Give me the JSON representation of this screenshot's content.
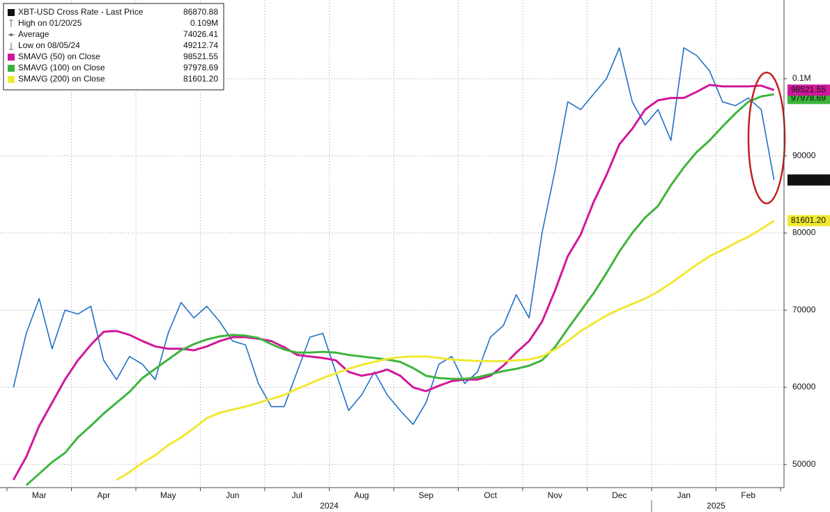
{
  "chart_data": {
    "type": "line",
    "categories": [
      null,
      null,
      "Mar",
      null,
      null,
      null,
      null,
      "Apr",
      null,
      null,
      null,
      null,
      "May",
      null,
      null,
      null,
      null,
      "Jun",
      null,
      null,
      null,
      null,
      "Jul",
      null,
      null,
      null,
      null,
      "Aug",
      null,
      null,
      null,
      null,
      "Sep",
      null,
      null,
      null,
      null,
      "Oct",
      null,
      null,
      null,
      null,
      "Nov",
      null,
      null,
      null,
      null,
      "Dec",
      null,
      null,
      null,
      null,
      "Jan",
      null,
      null,
      null,
      null,
      "Feb",
      null,
      null
    ],
    "x_group_labels": [
      "2024",
      "2025"
    ],
    "series": [
      {
        "name": "XBT-USD Cross Rate - Last Price",
        "color": "#1f6fc5",
        "last_label": "86870.88",
        "values": [
          60000,
          67000,
          71500,
          65000,
          70000,
          69500,
          70500,
          63500,
          61000,
          64000,
          63000,
          61000,
          67000,
          71000,
          69000,
          70500,
          68500,
          66000,
          65500,
          60500,
          57500,
          57500,
          62000,
          66500,
          67000,
          62000,
          57000,
          59000,
          62000,
          59000,
          57000,
          55200,
          58000,
          63000,
          64000,
          60500,
          62000,
          66500,
          68000,
          72000,
          69000,
          80000,
          88000,
          97000,
          96000,
          98000,
          100000,
          104000,
          97000,
          94000,
          96000,
          92000,
          104000,
          103000,
          101000,
          97000,
          96500,
          97500,
          96000,
          86870.88
        ]
      },
      {
        "name": "SMAVG (50)  on Close",
        "color": "#d0189a",
        "last_label": "98521.55",
        "values": [
          48000,
          51000,
          55000,
          58000,
          61000,
          63500,
          65500,
          67200,
          67300,
          66800,
          66000,
          65300,
          65000,
          65000,
          64800,
          65300,
          66000,
          66500,
          66500,
          66300,
          66000,
          65200,
          64200,
          64000,
          63800,
          63500,
          62000,
          61500,
          61800,
          62300,
          61500,
          60000,
          59500,
          60200,
          60800,
          61000,
          61000,
          61500,
          62800,
          64500,
          66000,
          68500,
          72500,
          77000,
          79800,
          84000,
          87500,
          91500,
          93500,
          96000,
          97200,
          97500,
          97500,
          98300,
          99200,
          99000,
          99000,
          99000,
          99100,
          98521.55
        ]
      },
      {
        "name": "SMAVG (100)  on Close",
        "color": "#3cb43c",
        "last_label": "97978.69",
        "values": [
          null,
          47300,
          48800,
          50300,
          51500,
          53500,
          55000,
          56600,
          58000,
          59400,
          61200,
          62400,
          63600,
          64800,
          65600,
          66200,
          66600,
          66800,
          66700,
          66400,
          65600,
          64900,
          64500,
          64500,
          64600,
          64500,
          64200,
          64000,
          63800,
          63600,
          63300,
          62500,
          61500,
          61200,
          61100,
          61100,
          61300,
          61700,
          62100,
          62400,
          62800,
          63500,
          65200,
          67600,
          69900,
          72200,
          74800,
          77600,
          80000,
          82000,
          83500,
          86200,
          88500,
          90500,
          92000,
          93800,
          95500,
          97000,
          97700,
          97978.69
        ]
      },
      {
        "name": "SMAVG (200)  on Close",
        "color": "#f0e830",
        "last_label": "81601.20",
        "values": [
          null,
          null,
          null,
          null,
          null,
          null,
          null,
          null,
          48000,
          49000,
          50200,
          51200,
          52500,
          53500,
          54700,
          56000,
          56700,
          57100,
          57500,
          58000,
          58500,
          59000,
          59800,
          60500,
          61200,
          61800,
          62400,
          62900,
          63300,
          63700,
          63900,
          64000,
          64000,
          63800,
          63600,
          63500,
          63400,
          63400,
          63400,
          63500,
          63600,
          64000,
          64900,
          66000,
          67300,
          68300,
          69300,
          70100,
          70800,
          71500,
          72400,
          73500,
          74700,
          75900,
          77000,
          77800,
          78700,
          79500,
          80500,
          81601.2
        ]
      }
    ],
    "stats": [
      {
        "name": "High on 01/20/25",
        "label": "0.109M"
      },
      {
        "name": "Average",
        "label": "74026.41"
      },
      {
        "name": "Low on 08/05/24",
        "label": "49212.74"
      }
    ],
    "ylim": [
      47000,
      110200
    ],
    "yticks": [
      50000,
      60000,
      70000,
      80000,
      90000,
      {
        "value": 100000,
        "label": "0.1M"
      }
    ],
    "grid": true
  }
}
